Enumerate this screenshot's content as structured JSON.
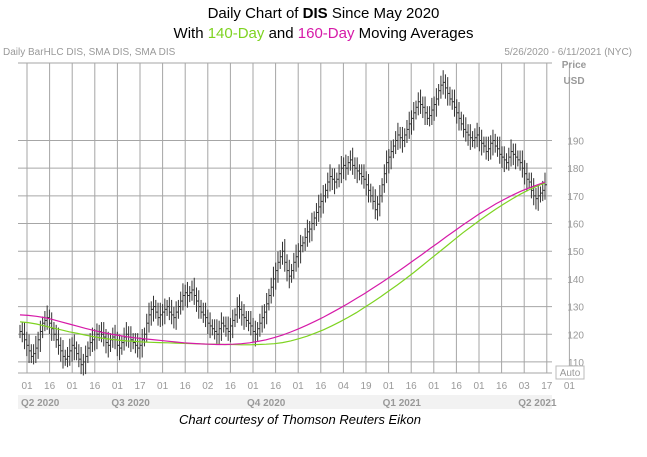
{
  "title": {
    "line1_pre": "Daily Chart of ",
    "line1_bold": "DIS",
    "line1_post": " Since May 2020",
    "line2_pre": "With ",
    "line2_sma140": "140-Day",
    "line2_mid": " and ",
    "line2_sma160": "160-Day",
    "line2_post": " Moving Averages"
  },
  "header": {
    "left": "Daily BarHLC DIS, SMA DIS, SMA DIS",
    "right": "5/26/2020 - 6/11/2021 (NYC)"
  },
  "caption": "Chart courtesy of Thomson Reuters Eikon",
  "colors": {
    "bars": "#333333",
    "sma140": "#7ed321",
    "sma160": "#d61aa8",
    "grid": "#a6a6a6",
    "axis_text": "#999999"
  },
  "chart_data": {
    "type": "bar",
    "style": "HLC",
    "ylabel_top": "Price",
    "ylabel_unit": "USD",
    "ylim": [
      106,
      218
    ],
    "y_ticks": [
      110,
      120,
      130,
      140,
      150,
      160,
      170,
      180,
      190
    ],
    "x_tick_labels": [
      "01",
      "16",
      "01",
      "16",
      "01",
      "17",
      "01",
      "16",
      "02",
      "16",
      "01",
      "16",
      "01",
      "16",
      "04",
      "19",
      "01",
      "16",
      "01",
      "16",
      "01",
      "16",
      "03",
      "17",
      "01"
    ],
    "quarters": [
      "Q2 2020",
      "Q3 2020",
      "Q4 2020",
      "Q1 2021",
      "Q2 2021"
    ],
    "auto_label": "Auto",
    "grid": true,
    "series": [
      {
        "name": "DIS",
        "kind": "price",
        "closes": [
          121,
          120,
          118,
          116,
          114,
          112,
          113,
          115,
          118,
          121,
          124,
          125,
          126,
          124,
          122,
          120,
          118,
          116,
          114,
          112,
          111,
          112,
          114,
          116,
          115,
          113,
          111,
          109,
          110,
          112,
          115,
          117,
          118,
          119,
          120,
          121,
          120,
          119,
          117,
          116,
          118,
          119,
          118,
          116,
          115,
          117,
          119,
          120,
          119,
          118,
          117,
          116,
          115,
          116,
          118,
          120,
          124,
          127,
          129,
          130,
          128,
          126,
          127,
          128,
          129,
          130,
          128,
          127,
          126,
          128,
          130,
          132,
          134,
          135,
          134,
          135,
          136,
          134,
          132,
          130,
          128,
          127,
          126,
          124,
          123,
          122,
          121,
          120,
          122,
          124,
          123,
          122,
          121,
          123,
          125,
          127,
          130,
          129,
          127,
          126,
          125,
          124,
          123,
          121,
          120,
          122,
          124,
          126,
          128,
          131,
          134,
          137,
          140,
          143,
          146,
          148,
          150,
          146,
          143,
          141,
          143,
          146,
          148,
          150,
          152,
          153,
          155,
          157,
          158,
          160,
          162,
          164,
          166,
          168,
          170,
          172,
          175,
          177,
          176,
          175,
          176,
          178,
          180,
          181,
          180,
          182,
          183,
          181,
          180,
          179,
          178,
          177,
          176,
          174,
          172,
          170,
          168,
          165,
          167,
          170,
          174,
          178,
          182,
          184,
          186,
          188,
          190,
          192,
          191,
          190,
          192,
          194,
          196,
          198,
          200,
          202,
          204,
          203,
          202,
          200,
          198,
          199,
          201,
          203,
          205,
          208,
          210,
          211,
          209,
          207,
          205,
          204,
          202,
          200,
          198,
          196,
          194,
          193,
          192,
          191,
          190,
          191,
          192,
          190,
          189,
          188,
          186,
          187,
          189,
          190,
          188,
          187,
          185,
          184,
          183,
          182,
          184,
          186,
          185,
          184,
          183,
          182,
          180,
          178,
          176,
          175,
          172,
          170,
          169,
          170,
          171,
          172,
          174
        ]
      },
      {
        "name": "140-Day",
        "kind": "sma",
        "values": [
          124.5,
          124.2,
          123.7,
          123.0,
          122.3,
          121.6,
          120.9,
          120.3,
          119.7,
          119.1,
          118.6,
          118.2,
          117.9,
          117.6,
          117.4,
          117.2,
          117.1,
          117.0,
          116.9,
          116.8,
          116.7,
          116.6,
          116.5,
          116.4,
          116.4,
          116.3,
          116.3,
          116.2,
          116.2,
          116.3,
          116.4,
          116.6,
          117.0,
          117.6,
          118.4,
          119.3,
          120.4,
          121.6,
          123.0,
          124.5,
          126.1,
          127.8,
          129.7,
          131.6,
          133.6,
          135.7,
          137.8,
          140.0,
          142.3,
          144.7,
          147.1,
          149.5,
          151.9,
          154.3,
          156.7,
          158.9,
          161.1,
          163.2,
          165.2,
          167.1,
          168.9,
          170.6,
          172.1,
          173.5,
          174.6
        ]
      },
      {
        "name": "160-Day",
        "kind": "sma",
        "values": [
          127.0,
          126.8,
          126.5,
          126.0,
          125.3,
          124.5,
          123.7,
          122.9,
          122.1,
          121.4,
          120.7,
          120.1,
          119.6,
          119.1,
          118.7,
          118.4,
          118.1,
          117.8,
          117.5,
          117.2,
          116.9,
          116.7,
          116.5,
          116.4,
          116.3,
          116.3,
          116.4,
          116.6,
          116.9,
          117.4,
          118.0,
          118.8,
          119.7,
          120.8,
          122.0,
          123.3,
          124.7,
          126.2,
          127.8,
          129.4,
          131.1,
          132.9,
          134.7,
          136.6,
          138.5,
          140.5,
          142.5,
          144.6,
          146.7,
          148.8,
          151.0,
          153.1,
          155.3,
          157.4,
          159.5,
          161.5,
          163.5,
          165.3,
          167.1,
          168.7,
          170.2,
          171.6,
          172.8,
          173.9,
          175.0
        ]
      }
    ]
  }
}
